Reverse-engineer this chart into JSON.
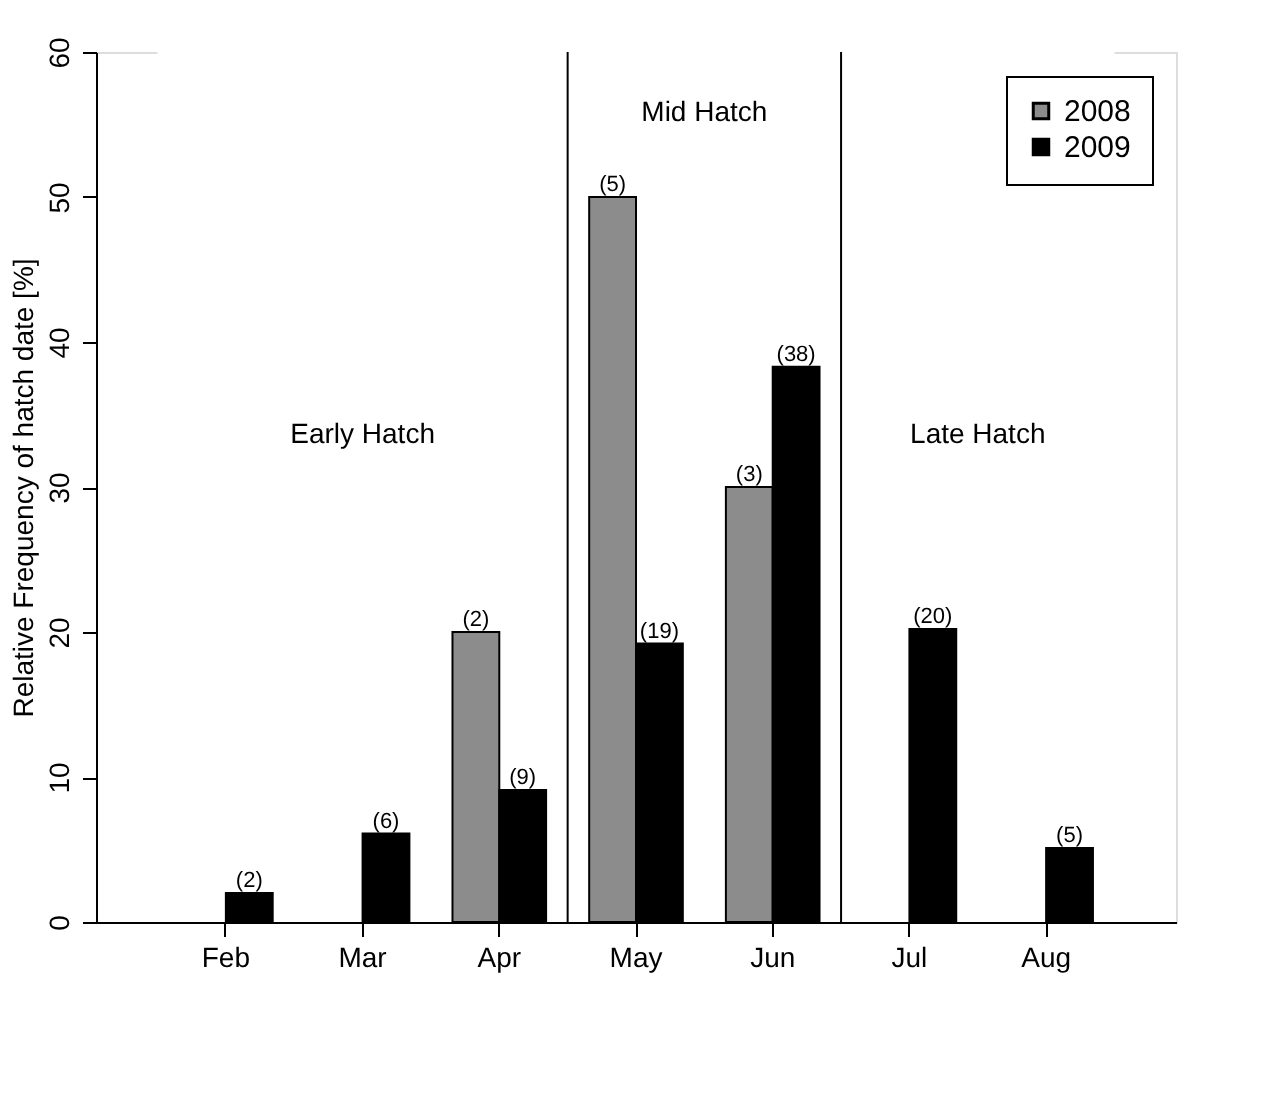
{
  "chart_data": {
    "type": "bar",
    "ylabel": "Relative Frequency of hatch date [%]",
    "categories": [
      "Feb",
      "Mar",
      "Apr",
      "May",
      "Jun",
      "Jul",
      "Aug"
    ],
    "series": [
      {
        "name": "2008",
        "color": "#8c8c8c",
        "values": [
          null,
          null,
          20,
          50,
          30,
          null,
          null
        ]
      },
      {
        "name": "2009",
        "color": "#000000",
        "values": [
          2,
          6.1,
          9.1,
          19.2,
          38.3,
          20.2,
          5.1
        ]
      }
    ],
    "ylim": [
      0,
      60
    ],
    "yticks": [
      0,
      10,
      20,
      30,
      40,
      50,
      60
    ],
    "bands": [
      {
        "axis": "x",
        "from": "Feb",
        "to": "Apr",
        "label": "Early Hatch"
      },
      {
        "axis": "x",
        "from": "May",
        "to": "Jun",
        "label": "Mid Hatch"
      },
      {
        "axis": "x",
        "from": "Jul",
        "to": "Aug",
        "label": "Late Hatch"
      }
    ],
    "annotations": [
      {
        "text": "(2)",
        "x": "Feb",
        "y": 2
      },
      {
        "text": "(6)",
        "x": "Mar",
        "y": 6.1
      },
      {
        "text": "(2)",
        "x": "Apr",
        "y": 20
      },
      {
        "text": "(9)",
        "x": "Apr",
        "y": 9.1
      },
      {
        "text": "(5)",
        "x": "May",
        "y": 50
      },
      {
        "text": "(19)",
        "x": "May",
        "y": 19.2
      },
      {
        "text": "(3)",
        "x": "Jun",
        "y": 30
      },
      {
        "text": "(38)",
        "x": "Jun",
        "y": 38.3
      },
      {
        "text": "(20)",
        "x": "Jul",
        "y": 20.2
      },
      {
        "text": "(5)",
        "x": "Aug",
        "y": 5.1
      }
    ],
    "legend": "top right",
    "grid": false
  }
}
